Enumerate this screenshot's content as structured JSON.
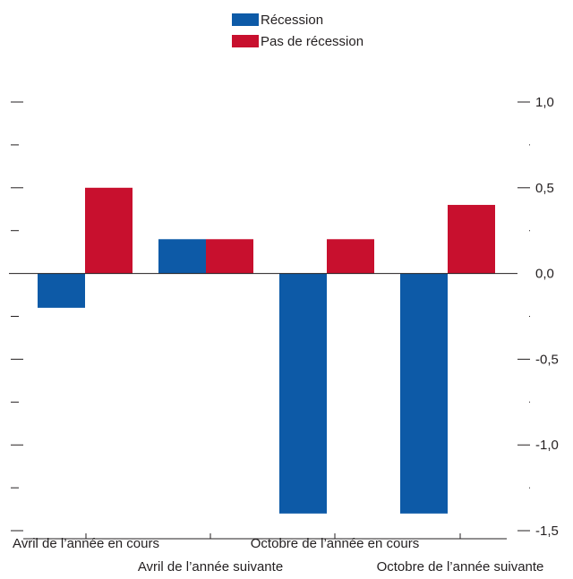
{
  "chart_data": {
    "type": "bar",
    "title": "",
    "xlabel": "",
    "ylabel": "",
    "categories": [
      "Avril de l’année en cours",
      "Avril de l’année suivante",
      "Octobre de l’année en cours",
      "Octobre de l’année suivante"
    ],
    "series": [
      {
        "name": "Récession",
        "color": "#0d5aa7",
        "values": [
          -0.2,
          0.2,
          -1.4,
          -1.4
        ]
      },
      {
        "name": "Pas de récession",
        "color": "#c8102e",
        "values": [
          0.5,
          0.2,
          0.2,
          0.4
        ]
      }
    ],
    "ylim": [
      -1.5,
      1.0
    ],
    "yticks_major": [
      1.0,
      0.5,
      0.0,
      -0.5,
      -1.0,
      -1.5
    ],
    "ytick_labels": [
      "1,0",
      "0,5",
      "0,0",
      "-0,5",
      "-1,0",
      "-1,5"
    ],
    "yticks_minor": [
      0.75,
      0.25,
      -0.25,
      -0.75,
      -1.25
    ],
    "grid": false,
    "legend_position": "top-center",
    "axis_color": "#231f20"
  }
}
